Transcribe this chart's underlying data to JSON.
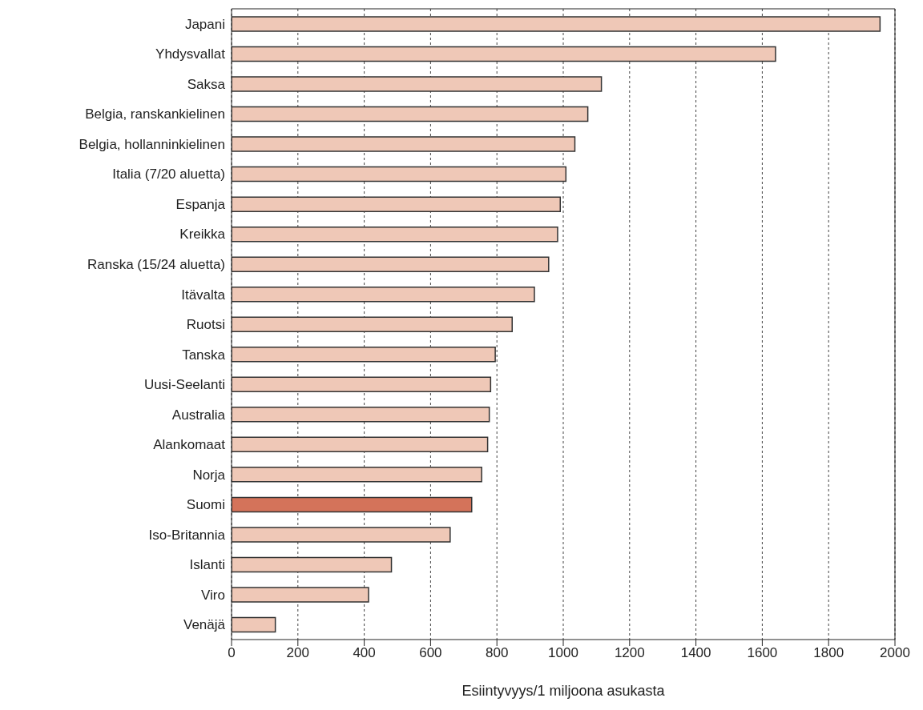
{
  "chart_data": {
    "type": "bar",
    "orientation": "horizontal",
    "xlabel": "Esiintyvyys/1 miljoona asukasta",
    "categories": [
      "Japani",
      "Yhdysvallat",
      "Saksa",
      "Belgia, ranskankielinen",
      "Belgia, hollanninkielinen",
      "Italia (7/20 aluetta)",
      "Espanja",
      "Kreikka",
      "Ranska (15/24 aluetta)",
      "Itävalta",
      "Ruotsi",
      "Tanska",
      "Uusi-Seelanti",
      "Australia",
      "Alankomaat",
      "Norja",
      "Suomi",
      "Iso-Britannia",
      "Islanti",
      "Viro",
      "Venäjä"
    ],
    "values": [
      1955,
      1640,
      1115,
      1074,
      1035,
      1008,
      991,
      983,
      956,
      913,
      846,
      795,
      781,
      777,
      772,
      754,
      724,
      659,
      482,
      413,
      132
    ],
    "colors": [
      "#efc8b7",
      "#efc8b7",
      "#efc8b7",
      "#efc8b7",
      "#efc8b7",
      "#efc8b7",
      "#efc8b7",
      "#efc8b7",
      "#efc8b7",
      "#efc8b7",
      "#efc8b7",
      "#efc8b7",
      "#efc8b7",
      "#efc8b7",
      "#efc8b7",
      "#efc8b7",
      "#d4735a",
      "#efc8b7",
      "#efc8b7",
      "#efc8b7",
      "#efc8b7"
    ],
    "xlim": [
      0,
      2000
    ],
    "xticks": [
      0,
      200,
      400,
      600,
      800,
      1000,
      1200,
      1400,
      1600,
      1800,
      2000
    ],
    "grid": "x"
  }
}
